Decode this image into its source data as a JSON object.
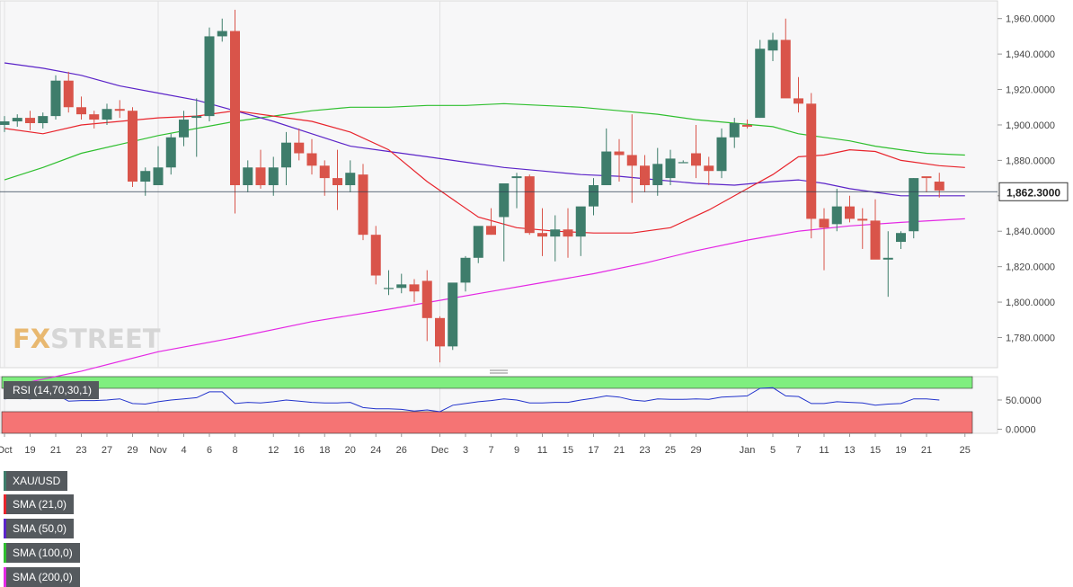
{
  "chart_data": {
    "type": "candlestick",
    "symbol": "XAU/USD",
    "last_price_label": "1,862.3000",
    "ylim": [
      1763,
      1970
    ],
    "y_ticks": [
      "1,960.0000",
      "1,940.0000",
      "1,920.0000",
      "1,900.0000",
      "1,880.0000",
      "1,860.0000",
      "1,840.0000",
      "1,820.0000",
      "1,800.0000",
      "1,780.0000"
    ],
    "y_tick_values": [
      1960,
      1940,
      1920,
      1900,
      1880,
      1860,
      1840,
      1820,
      1800,
      1780
    ],
    "x_ticks": [
      {
        "label": "Oct",
        "index": 0
      },
      {
        "label": "19",
        "index": 2
      },
      {
        "label": "21",
        "index": 4
      },
      {
        "label": "23",
        "index": 6
      },
      {
        "label": "27",
        "index": 8
      },
      {
        "label": "29",
        "index": 10
      },
      {
        "label": "Nov",
        "index": 12
      },
      {
        "label": "4",
        "index": 14
      },
      {
        "label": "6",
        "index": 16
      },
      {
        "label": "8",
        "index": 18
      },
      {
        "label": "12",
        "index": 21
      },
      {
        "label": "16",
        "index": 23
      },
      {
        "label": "18",
        "index": 25
      },
      {
        "label": "20",
        "index": 27
      },
      {
        "label": "24",
        "index": 29
      },
      {
        "label": "26",
        "index": 31
      },
      {
        "label": "Dec",
        "index": 34
      },
      {
        "label": "3",
        "index": 36
      },
      {
        "label": "7",
        "index": 38
      },
      {
        "label": "9",
        "index": 40
      },
      {
        "label": "11",
        "index": 42
      },
      {
        "label": "15",
        "index": 44
      },
      {
        "label": "17",
        "index": 46
      },
      {
        "label": "21",
        "index": 48
      },
      {
        "label": "23",
        "index": 50
      },
      {
        "label": "25",
        "index": 52
      },
      {
        "label": "29",
        "index": 54
      },
      {
        "label": "Jan",
        "index": 58
      },
      {
        "label": "5",
        "index": 60
      },
      {
        "label": "7",
        "index": 62
      },
      {
        "label": "11",
        "index": 64
      },
      {
        "label": "13",
        "index": 66
      },
      {
        "label": "15",
        "index": 68
      },
      {
        "label": "19",
        "index": 70
      },
      {
        "label": "21",
        "index": 72
      },
      {
        "label": "25",
        "index": 75
      }
    ],
    "candles": [
      [
        1900,
        1905,
        1896,
        1902
      ],
      [
        1902,
        1906,
        1899,
        1904
      ],
      [
        1904,
        1908,
        1897,
        1901
      ],
      [
        1901,
        1907,
        1898,
        1905
      ],
      [
        1905,
        1928,
        1903,
        1925
      ],
      [
        1925,
        1930,
        1907,
        1910
      ],
      [
        1910,
        1916,
        1903,
        1906
      ],
      [
        1906,
        1908,
        1898,
        1903
      ],
      [
        1903,
        1912,
        1900,
        1909
      ],
      [
        1909,
        1914,
        1904,
        1908
      ],
      [
        1908,
        1910,
        1865,
        1868
      ],
      [
        1868,
        1876,
        1860,
        1874
      ],
      [
        1866,
        1888,
        1866,
        1876
      ],
      [
        1876,
        1895,
        1872,
        1893
      ],
      [
        1893,
        1908,
        1888,
        1903
      ],
      [
        1904,
        1915,
        1882,
        1905
      ],
      [
        1905,
        1955,
        1902,
        1950
      ],
      [
        1950,
        1960,
        1947,
        1953
      ],
      [
        1953,
        1965,
        1850,
        1866
      ],
      [
        1866,
        1880,
        1862,
        1876
      ],
      [
        1876,
        1886,
        1864,
        1866
      ],
      [
        1866,
        1882,
        1860,
        1876
      ],
      [
        1876,
        1896,
        1866,
        1890
      ],
      [
        1890,
        1898,
        1880,
        1884
      ],
      [
        1884,
        1892,
        1872,
        1877
      ],
      [
        1877,
        1880,
        1860,
        1870
      ],
      [
        1870,
        1886,
        1852,
        1866
      ],
      [
        1866,
        1880,
        1862,
        1873
      ],
      [
        1872,
        1878,
        1835,
        1838
      ],
      [
        1838,
        1843,
        1810,
        1815
      ],
      [
        1808,
        1818,
        1804,
        1808
      ],
      [
        1808,
        1816,
        1805,
        1810
      ],
      [
        1810,
        1813,
        1800,
        1806
      ],
      [
        1812,
        1818,
        1778,
        1791
      ],
      [
        1791,
        1792,
        1766,
        1775
      ],
      [
        1775,
        1810,
        1773,
        1811
      ],
      [
        1811,
        1826,
        1806,
        1825
      ],
      [
        1825,
        1842,
        1822,
        1843
      ],
      [
        1843,
        1853,
        1838,
        1838
      ],
      [
        1848,
        1866,
        1823,
        1867
      ],
      [
        1870,
        1873,
        1853,
        1871
      ],
      [
        1871,
        1872,
        1838,
        1839
      ],
      [
        1839,
        1853,
        1826,
        1837
      ],
      [
        1837,
        1849,
        1823,
        1841
      ],
      [
        1841,
        1853,
        1825,
        1837
      ],
      [
        1837,
        1852,
        1826,
        1854
      ],
      [
        1854,
        1870,
        1849,
        1866
      ],
      [
        1866,
        1898,
        1866,
        1885
      ],
      [
        1885,
        1892,
        1868,
        1883
      ],
      [
        1883,
        1906,
        1856,
        1877
      ],
      [
        1877,
        1883,
        1862,
        1866
      ],
      [
        1866,
        1887,
        1860,
        1878
      ],
      [
        1870,
        1886,
        1866,
        1881
      ],
      [
        1879,
        1880,
        1879,
        1879
      ],
      [
        1884,
        1900,
        1870,
        1877
      ],
      [
        1877,
        1882,
        1866,
        1874
      ],
      [
        1874,
        1898,
        1870,
        1893
      ],
      [
        1893,
        1904,
        1887,
        1901
      ],
      [
        1900,
        1903,
        1898,
        1899
      ],
      [
        1904,
        1948,
        1904,
        1943
      ],
      [
        1942,
        1952,
        1936,
        1948
      ],
      [
        1948,
        1960,
        1916,
        1915
      ],
      [
        1915,
        1927,
        1907,
        1912
      ],
      [
        1912,
        1918,
        1836,
        1847
      ],
      [
        1847,
        1853,
        1818,
        1842
      ],
      [
        1844,
        1864,
        1840,
        1854
      ],
      [
        1854,
        1860,
        1845,
        1847
      ],
      [
        1847,
        1853,
        1830,
        1846
      ],
      [
        1846,
        1858,
        1825,
        1824
      ],
      [
        1824,
        1840,
        1803,
        1825
      ],
      [
        1834,
        1840,
        1830,
        1839
      ],
      [
        1840,
        1870,
        1836,
        1870
      ],
      [
        1871,
        1870,
        1862,
        1870
      ],
      [
        1868,
        1873,
        1859,
        1863
      ]
    ],
    "sma_21": [
      [
        0,
        1898
      ],
      [
        3,
        1895
      ],
      [
        6,
        1900
      ],
      [
        9,
        1902
      ],
      [
        12,
        1904
      ],
      [
        15,
        1905
      ],
      [
        18,
        1908
      ],
      [
        21,
        1905
      ],
      [
        24,
        1902
      ],
      [
        27,
        1896
      ],
      [
        30,
        1886
      ],
      [
        33,
        1868
      ],
      [
        35,
        1858
      ],
      [
        37,
        1848
      ],
      [
        40,
        1842
      ],
      [
        43,
        1840
      ],
      [
        46,
        1839
      ],
      [
        49,
        1839
      ],
      [
        52,
        1842
      ],
      [
        55,
        1852
      ],
      [
        58,
        1864
      ],
      [
        60,
        1872
      ],
      [
        62,
        1882
      ],
      [
        64,
        1883
      ],
      [
        66,
        1886
      ],
      [
        68,
        1885
      ],
      [
        70,
        1880
      ],
      [
        73,
        1877
      ],
      [
        75,
        1876
      ]
    ],
    "sma_50": [
      [
        0,
        1935
      ],
      [
        3,
        1932
      ],
      [
        6,
        1928
      ],
      [
        9,
        1922
      ],
      [
        12,
        1918
      ],
      [
        15,
        1914
      ],
      [
        18,
        1908
      ],
      [
        21,
        1902
      ],
      [
        24,
        1895
      ],
      [
        27,
        1888
      ],
      [
        30,
        1885
      ],
      [
        33,
        1882
      ],
      [
        36,
        1879
      ],
      [
        39,
        1876
      ],
      [
        42,
        1874
      ],
      [
        45,
        1872
      ],
      [
        48,
        1871
      ],
      [
        51,
        1869
      ],
      [
        54,
        1867
      ],
      [
        57,
        1866
      ],
      [
        60,
        1868
      ],
      [
        62,
        1869
      ],
      [
        64,
        1867
      ],
      [
        66,
        1864
      ],
      [
        68,
        1862
      ],
      [
        70,
        1860
      ],
      [
        72,
        1860
      ],
      [
        75,
        1860
      ]
    ],
    "sma_100": [
      [
        0,
        1869
      ],
      [
        3,
        1876
      ],
      [
        6,
        1884
      ],
      [
        9,
        1889
      ],
      [
        12,
        1894
      ],
      [
        15,
        1898
      ],
      [
        18,
        1902
      ],
      [
        21,
        1905
      ],
      [
        24,
        1908
      ],
      [
        27,
        1910
      ],
      [
        30,
        1910
      ],
      [
        33,
        1911
      ],
      [
        36,
        1911
      ],
      [
        39,
        1912
      ],
      [
        42,
        1911
      ],
      [
        45,
        1910
      ],
      [
        48,
        1908
      ],
      [
        51,
        1906
      ],
      [
        54,
        1903
      ],
      [
        57,
        1901
      ],
      [
        60,
        1899
      ],
      [
        62,
        1895
      ],
      [
        64,
        1893
      ],
      [
        66,
        1891
      ],
      [
        68,
        1888
      ],
      [
        70,
        1886
      ],
      [
        72,
        1884
      ],
      [
        75,
        1883
      ]
    ],
    "sma_200": [
      [
        0,
        1752
      ],
      [
        6,
        1761
      ],
      [
        12,
        1772
      ],
      [
        18,
        1780
      ],
      [
        24,
        1789
      ],
      [
        30,
        1796
      ],
      [
        34,
        1801
      ],
      [
        38,
        1806
      ],
      [
        42,
        1811
      ],
      [
        46,
        1816
      ],
      [
        50,
        1822
      ],
      [
        54,
        1829
      ],
      [
        58,
        1835
      ],
      [
        62,
        1840
      ],
      [
        66,
        1843
      ],
      [
        70,
        1845
      ],
      [
        75,
        1847
      ]
    ],
    "rsi": {
      "ylim": [
        -7,
        90
      ],
      "y_ticks": [
        "50.0000",
        "0.0000"
      ],
      "y_tick_values": [
        50,
        0
      ],
      "overbought": 70,
      "oversold": 30,
      "values": [
        52,
        54,
        52,
        55,
        60,
        48,
        49,
        49,
        50,
        52,
        44,
        43,
        47,
        50,
        52,
        54,
        64,
        64,
        44,
        46,
        45,
        47,
        50,
        48,
        46,
        45,
        45,
        46,
        37,
        35,
        35,
        34,
        31,
        33,
        30,
        41,
        44,
        47,
        49,
        52,
        50,
        45,
        45,
        46,
        46,
        50,
        53,
        57,
        55,
        50,
        48,
        52,
        51,
        51,
        52,
        51,
        55,
        56,
        57,
        70,
        71,
        57,
        56,
        44,
        44,
        47,
        46,
        45,
        41,
        43,
        44,
        52,
        52,
        50
      ]
    },
    "colors": {
      "up": "#3e7d6b",
      "down": "#d9544a",
      "sma_21": "#e8242c",
      "sma_50": "#5b24c8",
      "sma_100": "#2fbf2f",
      "sma_200": "#e428e4",
      "rsi_line": "#2233cc",
      "rsi_over": "#7fee7f",
      "rsi_under": "#f57474"
    }
  },
  "legend": [
    {
      "label": "XAU/USD",
      "color": "#3e7d6b"
    },
    {
      "label": "SMA (21,0)",
      "color": "#e8242c"
    },
    {
      "label": "SMA (50,0)",
      "color": "#5b24c8"
    },
    {
      "label": "SMA (100,0)",
      "color": "#2fbf2f"
    },
    {
      "label": "SMA (200,0)",
      "color": "#e428e4"
    }
  ],
  "rsi_label": "RSI (14,70,30,1)",
  "logo": {
    "x": "FX",
    "rest": "STREET"
  }
}
